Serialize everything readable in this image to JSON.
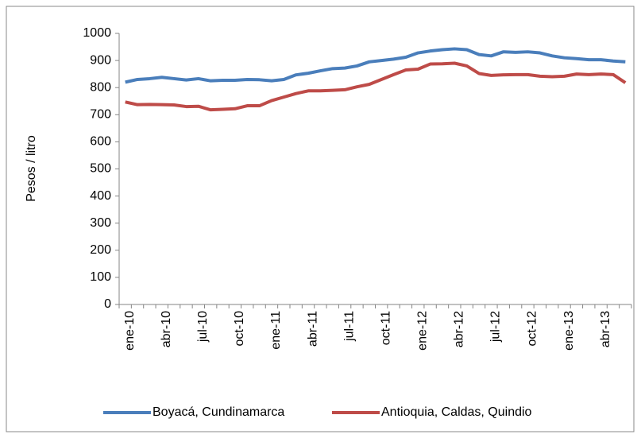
{
  "chart_data": {
    "type": "line",
    "categories": [
      "ene-10",
      null,
      null,
      "abr-10",
      null,
      null,
      "jul-10",
      null,
      null,
      "oct-10",
      null,
      null,
      "ene-11",
      null,
      null,
      "abr-11",
      null,
      null,
      "jul-11",
      null,
      null,
      "oct-11",
      null,
      null,
      "ene-12",
      null,
      null,
      "abr-12",
      null,
      null,
      "jul-12",
      null,
      null,
      "oct-12",
      null,
      null,
      "ene-13",
      null,
      null,
      "abr-13",
      null,
      null
    ],
    "series": [
      {
        "name": "Boyacá, Cundinamarca",
        "color": "#4a7ebb",
        "values": [
          820,
          830,
          833,
          838,
          833,
          828,
          833,
          825,
          827,
          827,
          830,
          829,
          825,
          830,
          847,
          853,
          862,
          870,
          872,
          880,
          895,
          900,
          905,
          912,
          928,
          935,
          940,
          943,
          940,
          922,
          917,
          932,
          930,
          932,
          928,
          917,
          910,
          907,
          903,
          903,
          898,
          895
        ]
      },
      {
        "name": "Antioquia, Caldas, Quindio",
        "color": "#be4b48",
        "values": [
          747,
          737,
          738,
          737,
          736,
          730,
          731,
          718,
          720,
          722,
          733,
          733,
          752,
          765,
          778,
          788,
          788,
          790,
          792,
          803,
          812,
          830,
          848,
          865,
          868,
          887,
          888,
          890,
          880,
          852,
          845,
          847,
          848,
          848,
          842,
          840,
          842,
          850,
          848,
          850,
          848,
          818
        ]
      }
    ],
    "ylabel": "Pesos / litro",
    "ylim": [
      0,
      1000
    ],
    "yticks": [
      0,
      100,
      200,
      300,
      400,
      500,
      600,
      700,
      800,
      900,
      1000
    ],
    "grid": false,
    "legend": "bottom"
  }
}
